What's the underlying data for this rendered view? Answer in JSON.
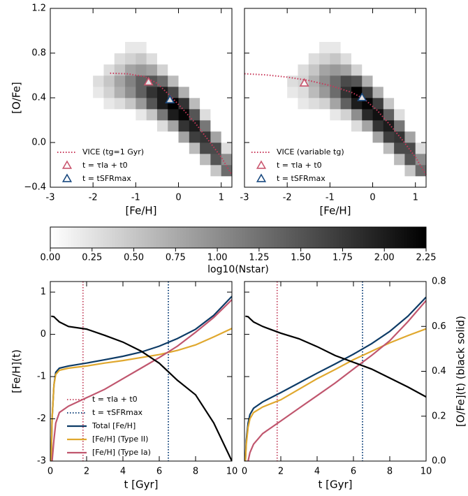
{
  "chart_data": [
    {
      "type": "heatmap",
      "xlabel": "[Fe/H]",
      "ylabel": "[O/Fe]",
      "xlim": [
        -3,
        1.25
      ],
      "ylim": [
        -0.4,
        1.2
      ],
      "xticks": [
        -3,
        -2,
        -1,
        0,
        1
      ],
      "yticks": [
        {
          "value": -0.4,
          "label": "−0.4"
        },
        {
          "value": 0,
          "label": "0.0"
        },
        {
          "value": 0.4,
          "label": "0.4"
        },
        {
          "value": 0.8,
          "label": "0.8"
        },
        {
          "value": 1.2,
          "label": "1.2"
        }
      ],
      "xbins": [
        -2.5,
        -2.25,
        -2,
        -1.75,
        -1.5,
        -1.25,
        -1,
        -0.75,
        -0.5,
        -0.25,
        0,
        0.25,
        0.5,
        0.75,
        1,
        1.25
      ],
      "ybins": [
        -0.3,
        -0.2,
        -0.1,
        0,
        0.1,
        0.2,
        0.3,
        0.4,
        0.5,
        0.6,
        0.7,
        0.8,
        0.9
      ],
      "values": [
        [
          0,
          0,
          0,
          0,
          0,
          0,
          0,
          0,
          0,
          0,
          0,
          0,
          0,
          0.5,
          1.3
        ],
        [
          0,
          0,
          0,
          0,
          0,
          0,
          0,
          0,
          0,
          0,
          0,
          0,
          0.6,
          1.5,
          1.0
        ],
        [
          0,
          0,
          0,
          0,
          0,
          0,
          0,
          0,
          0,
          0,
          0,
          0.6,
          1.6,
          1.6,
          0.3
        ],
        [
          0,
          0,
          0,
          0,
          0,
          0,
          0,
          0,
          0,
          0,
          0.8,
          1.7,
          1.8,
          0.8,
          0
        ],
        [
          0,
          0,
          0,
          0,
          0,
          0,
          0,
          0,
          0.3,
          0.8,
          1.8,
          2.0,
          1.2,
          0,
          0
        ],
        [
          0,
          0,
          0,
          0,
          0,
          0,
          0.2,
          0.5,
          1.2,
          2.0,
          2.2,
          1.5,
          0.3,
          0,
          0
        ],
        [
          0,
          0,
          0,
          0.2,
          0.3,
          0.5,
          0.9,
          1.5,
          2.0,
          2.25,
          1.8,
          0.6,
          0,
          0,
          0
        ],
        [
          0,
          0,
          0.2,
          0.4,
          0.7,
          1.0,
          1.4,
          1.8,
          2.0,
          1.6,
          0.7,
          0,
          0,
          0,
          0
        ],
        [
          0,
          0,
          0.3,
          0.5,
          0.8,
          1.1,
          1.4,
          1.5,
          1.3,
          0.6,
          0,
          0,
          0,
          0,
          0
        ],
        [
          0,
          0,
          0,
          0.3,
          0.5,
          0.8,
          0.9,
          0.8,
          0.4,
          0,
          0,
          0,
          0,
          0,
          0
        ],
        [
          0,
          0,
          0,
          0,
          0.3,
          0.4,
          0.5,
          0.3,
          0,
          0,
          0,
          0,
          0,
          0,
          0
        ],
        [
          0,
          0,
          0,
          0,
          0,
          0.2,
          0.2,
          0,
          0,
          0,
          0,
          0,
          0,
          0,
          0
        ]
      ],
      "series": [
        {
          "name": "VICE (tg=1 Gyr)",
          "color": "#c8385a",
          "x": [
            -1.6,
            -1.2,
            -0.8,
            -0.5,
            -0.2,
            0.1,
            0.4,
            0.7,
            1.0,
            1.25
          ],
          "values": [
            0.62,
            0.615,
            0.59,
            0.53,
            0.42,
            0.3,
            0.17,
            0.02,
            -0.13,
            -0.29
          ]
        }
      ],
      "markers": [
        {
          "name": "t = τIa + t0",
          "color": "#c9566e",
          "x": -0.7,
          "y": 0.54
        },
        {
          "name": "t = tSFRmax",
          "color": "#1a4a80",
          "x": -0.2,
          "y": 0.38
        }
      ],
      "legend": "lower left"
    },
    {
      "type": "heatmap",
      "xlabel": "[Fe/H]",
      "xlim": [
        -3,
        1.25
      ],
      "ylim": [
        -0.4,
        1.2
      ],
      "xticks": [
        -3,
        -2,
        -1,
        0,
        1
      ],
      "yticks": [
        -0.4,
        0,
        0.4,
        0.8,
        1.2
      ],
      "xbins": [
        -2.5,
        -2.25,
        -2,
        -1.75,
        -1.5,
        -1.25,
        -1,
        -0.75,
        -0.5,
        -0.25,
        0,
        0.25,
        0.5,
        0.75,
        1,
        1.25
      ],
      "ybins": [
        -0.3,
        -0.2,
        -0.1,
        0,
        0.1,
        0.2,
        0.3,
        0.4,
        0.5,
        0.6,
        0.7,
        0.8,
        0.9
      ],
      "values": [
        [
          0,
          0,
          0,
          0,
          0,
          0,
          0,
          0,
          0,
          0,
          0,
          0,
          0,
          0.5,
          1.3
        ],
        [
          0,
          0,
          0,
          0,
          0,
          0,
          0,
          0,
          0,
          0,
          0,
          0,
          0.6,
          1.5,
          1.0
        ],
        [
          0,
          0,
          0,
          0,
          0,
          0,
          0,
          0,
          0,
          0,
          0,
          0.6,
          1.6,
          1.6,
          0.3
        ],
        [
          0,
          0,
          0,
          0,
          0,
          0,
          0,
          0,
          0,
          0,
          0.8,
          1.7,
          1.8,
          0.8,
          0
        ],
        [
          0,
          0,
          0,
          0,
          0,
          0,
          0,
          0,
          0.3,
          0.8,
          1.8,
          2.0,
          1.2,
          0,
          0
        ],
        [
          0,
          0,
          0,
          0,
          0,
          0,
          0.2,
          0.4,
          1.0,
          1.9,
          2.1,
          1.4,
          0.3,
          0,
          0
        ],
        [
          0,
          0,
          0,
          0.2,
          0.3,
          0.4,
          0.8,
          1.4,
          2.0,
          2.2,
          1.7,
          0.5,
          0,
          0,
          0
        ],
        [
          0,
          0,
          0.2,
          0.3,
          0.6,
          0.9,
          1.3,
          1.8,
          2.25,
          1.7,
          0.7,
          0,
          0,
          0,
          0
        ],
        [
          0,
          0,
          0.3,
          0.4,
          0.7,
          1.0,
          1.3,
          1.6,
          1.5,
          0.7,
          0,
          0,
          0,
          0,
          0
        ],
        [
          0,
          0,
          0,
          0.3,
          0.5,
          0.8,
          0.9,
          0.8,
          0.4,
          0,
          0,
          0,
          0,
          0,
          0
        ],
        [
          0,
          0,
          0,
          0,
          0.3,
          0.4,
          0.5,
          0.3,
          0,
          0,
          0,
          0,
          0,
          0,
          0
        ],
        [
          0,
          0,
          0,
          0,
          0,
          0.2,
          0.2,
          0,
          0,
          0,
          0,
          0,
          0,
          0,
          0
        ]
      ],
      "series": [
        {
          "name": "VICE (variable tg)",
          "color": "#c8385a",
          "x": [
            -3,
            -2.5,
            -2,
            -1.5,
            -1,
            -0.5,
            -0.2,
            0.1,
            0.4,
            0.7,
            1.0,
            1.25
          ],
          "values": [
            0.615,
            0.605,
            0.585,
            0.555,
            0.51,
            0.45,
            0.39,
            0.29,
            0.16,
            0.02,
            -0.13,
            -0.29
          ]
        }
      ],
      "markers": [
        {
          "name": "t = τIa + t0",
          "color": "#c9566e",
          "x": -1.6,
          "y": 0.53
        },
        {
          "name": "t = tSFRmax",
          "color": "#1a4a80",
          "x": -0.25,
          "y": 0.4
        }
      ],
      "legend": "lower left"
    },
    {
      "type": "colorbar",
      "label": "log10(Nstar)",
      "colormap": "Greys",
      "clim": [
        0,
        2.25
      ],
      "ticks": [
        {
          "value": 0,
          "label": "0.00"
        },
        {
          "value": 0.25,
          "label": "0.25"
        },
        {
          "value": 0.5,
          "label": "0.50"
        },
        {
          "value": 0.75,
          "label": "0.75"
        },
        {
          "value": 1,
          "label": "1.00"
        },
        {
          "value": 1.25,
          "label": "1.25"
        },
        {
          "value": 1.5,
          "label": "1.50"
        },
        {
          "value": 1.75,
          "label": "1.75"
        },
        {
          "value": 2,
          "label": "2.00"
        },
        {
          "value": 2.25,
          "label": "2.25"
        }
      ]
    },
    {
      "type": "line",
      "xlabel": "t [Gyr]",
      "ylabel": "[Fe/H](t)",
      "xlim": [
        0,
        10
      ],
      "ylim": [
        -3,
        1.25
      ],
      "y2lim": [
        0,
        0.8
      ],
      "xticks": [
        0,
        2,
        4,
        6,
        8,
        10
      ],
      "yticks": [
        -3,
        -2,
        -1,
        0,
        1
      ],
      "x": [
        0.05,
        0.1,
        0.2,
        0.3,
        0.5,
        1,
        2,
        3,
        4,
        5,
        6,
        7,
        8,
        9,
        10
      ],
      "vlines": [
        {
          "name": "t = τIa + t0",
          "color": "#c9566e",
          "x": 1.8
        },
        {
          "name": "t = τSFRmax",
          "color": "#1a4a80",
          "x": 6.5
        }
      ],
      "series": [
        {
          "name": "Total [Fe/H]",
          "color": "#0d3b66",
          "values": [
            -3,
            -2,
            -1.2,
            -0.9,
            -0.8,
            -0.75,
            -0.68,
            -0.6,
            -0.52,
            -0.42,
            -0.28,
            -0.1,
            0.12,
            0.45,
            0.9
          ]
        },
        {
          "name": "[Fe/H] (Type II)",
          "color": "#e0a82e",
          "values": [
            -3,
            -2,
            -1.2,
            -0.95,
            -0.85,
            -0.8,
            -0.75,
            -0.68,
            -0.62,
            -0.55,
            -0.48,
            -0.38,
            -0.25,
            -0.06,
            0.14
          ]
        },
        {
          "name": "[Fe/H] (Type Ia)",
          "color": "#c0566e",
          "values": [
            null,
            -3,
            -2.5,
            -2.1,
            -1.85,
            -1.7,
            -1.5,
            -1.3,
            -1.05,
            -0.8,
            -0.55,
            -0.28,
            0.05,
            0.4,
            0.82
          ]
        },
        {
          "color": "#000000",
          "axis": "y2",
          "values": [
            0.645,
            0.645,
            0.643,
            0.635,
            0.62,
            0.6,
            0.588,
            0.56,
            0.53,
            0.49,
            0.436,
            0.36,
            0.295,
            0.17,
            0.0
          ]
        }
      ],
      "legend": "lower center"
    },
    {
      "type": "line",
      "xlabel": "t [Gyr]",
      "y2label": "[O/Fe](t) (black solid)",
      "xlim": [
        0,
        10
      ],
      "ylim": [
        -3,
        1.25
      ],
      "y2lim": [
        0,
        0.8
      ],
      "xticks": [
        0,
        2,
        4,
        6,
        8,
        10
      ],
      "yticks": [
        -3,
        -2,
        -1,
        0,
        1
      ],
      "y2ticks": [
        {
          "value": 0,
          "label": "0.0"
        },
        {
          "value": 0.2,
          "label": "0.2"
        },
        {
          "value": 0.4,
          "label": "0.4"
        },
        {
          "value": 0.6,
          "label": "0.6"
        },
        {
          "value": 0.8,
          "label": "0.8"
        }
      ],
      "x": [
        0.05,
        0.1,
        0.2,
        0.3,
        0.5,
        1,
        2,
        3,
        4,
        5,
        6,
        7,
        8,
        9,
        10
      ],
      "vlines": [
        {
          "color": "#c9566e",
          "x": 1.8
        },
        {
          "color": "#1a4a80",
          "x": 6.5
        }
      ],
      "series": [
        {
          "color": "#0d3b66",
          "values": [
            -3,
            -2.5,
            -2.1,
            -1.9,
            -1.75,
            -1.6,
            -1.38,
            -1.15,
            -0.92,
            -0.7,
            -0.47,
            -0.22,
            0.07,
            0.43,
            0.88
          ]
        },
        {
          "color": "#e0a82e",
          "values": [
            -3,
            -2.6,
            -2.2,
            -2.0,
            -1.85,
            -1.72,
            -1.55,
            -1.3,
            -1.05,
            -0.83,
            -0.6,
            -0.4,
            -0.2,
            -0.03,
            0.13
          ]
        },
        {
          "color": "#c0566e",
          "values": [
            null,
            null,
            -3,
            -2.8,
            -2.6,
            -2.35,
            -2.05,
            -1.75,
            -1.45,
            -1.15,
            -0.82,
            -0.5,
            -0.15,
            0.3,
            0.8
          ]
        },
        {
          "color": "#000000",
          "axis": "y2",
          "values": [
            0.645,
            0.645,
            0.643,
            0.635,
            0.62,
            0.6,
            0.57,
            0.545,
            0.51,
            0.47,
            0.44,
            0.41,
            0.37,
            0.33,
            0.286
          ]
        }
      ]
    }
  ]
}
